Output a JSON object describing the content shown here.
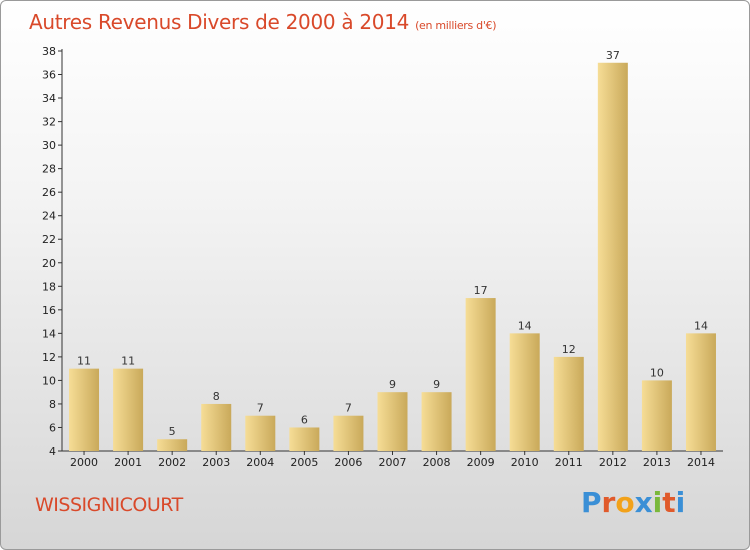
{
  "header": {
    "title": "Autres Revenus Divers de 2000 à 2014",
    "subtitle": "(en milliers d'€)"
  },
  "footer": {
    "city": "WISSIGNICOURT",
    "logo_letters": [
      "P",
      "r",
      "o",
      "x",
      "i",
      "t",
      "i"
    ],
    "logo_colors": [
      "#3a8fd6",
      "#e05a2b",
      "#f2a21a",
      "#3a8fd6",
      "#7ab83a",
      "#e05a2b",
      "#3a8fd6"
    ]
  },
  "chart_data": {
    "type": "bar",
    "title": "Autres Revenus Divers de 2000 à 2014",
    "subtitle": "(en milliers d'€)",
    "categories": [
      "2000",
      "2001",
      "2002",
      "2003",
      "2004",
      "2005",
      "2006",
      "2007",
      "2008",
      "2009",
      "2010",
      "2011",
      "2012",
      "2013",
      "2014"
    ],
    "values": [
      11,
      11,
      5,
      8,
      7,
      6,
      7,
      9,
      9,
      17,
      14,
      12,
      37,
      10,
      14
    ],
    "data_labels": [
      "11",
      "11",
      "5",
      "8",
      "7",
      "6",
      "7",
      "9",
      "9",
      "17",
      "14",
      "12",
      "37",
      "10",
      "14"
    ],
    "xlabel": "",
    "ylabel": "",
    "ylim": [
      4,
      38
    ],
    "yticks": [
      4,
      6,
      8,
      10,
      12,
      14,
      16,
      18,
      20,
      22,
      24,
      26,
      28,
      30,
      32,
      34,
      36,
      38
    ],
    "grid": false,
    "bar_color_light": "#f6dd96",
    "bar_color_dark": "#c9a95a",
    "title_color": "#d9492a"
  }
}
